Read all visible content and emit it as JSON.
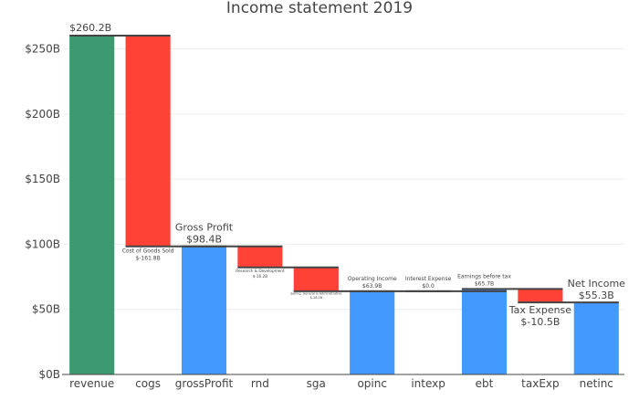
{
  "chart_data": {
    "type": "waterfall",
    "title": "Income statement 2019",
    "xlabel": "",
    "ylabel": "",
    "ylim": [
      0,
      270
    ],
    "yticks": [
      0,
      50,
      100,
      150,
      200,
      250
    ],
    "ytick_labels": [
      "$0B",
      "$50B",
      "$100B",
      "$150B",
      "$200B",
      "$250B"
    ],
    "categories": [
      "revenue",
      "cogs",
      "grossProfit",
      "rnd",
      "sga",
      "opinc",
      "intexp",
      "ebt",
      "taxExp",
      "netinc"
    ],
    "bars": [
      {
        "category": "revenue",
        "kind": "total",
        "base": 0,
        "top": 260.2,
        "label": "",
        "value_label": "$260.2B",
        "label_size": "large"
      },
      {
        "category": "cogs",
        "kind": "decrease",
        "base": 98.4,
        "top": 260.2,
        "label": "Cost of Goods Sold",
        "value_label": "$-161.8B",
        "label_size": "small"
      },
      {
        "category": "grossProfit",
        "kind": "total",
        "base": 0,
        "top": 98.4,
        "label": "Gross Profit",
        "value_label": "$98.4B",
        "label_size": "large"
      },
      {
        "category": "rnd",
        "kind": "decrease",
        "base": 82.2,
        "top": 98.4,
        "label": "Research & Development",
        "value_label": "$-16.2B",
        "label_size": "tiny"
      },
      {
        "category": "sga",
        "kind": "decrease",
        "base": 63.9,
        "top": 82.2,
        "label": "Selling, General & Administrative",
        "value_label": "$-18.2B",
        "label_size": "micro"
      },
      {
        "category": "opinc",
        "kind": "total",
        "base": 0,
        "top": 63.9,
        "label": "Operating Income",
        "value_label": "$63.9B",
        "label_size": "small"
      },
      {
        "category": "intexp",
        "kind": "decrease",
        "base": 63.9,
        "top": 63.9,
        "label": "Interest Expense",
        "value_label": "$0.0",
        "label_size": "small"
      },
      {
        "category": "ebt",
        "kind": "total",
        "base": 0,
        "top": 65.7,
        "label": "Earnings before tax",
        "value_label": "$65.7B",
        "label_size": "small"
      },
      {
        "category": "taxExp",
        "kind": "decrease",
        "base": 55.3,
        "top": 65.7,
        "label": "Tax Expense",
        "value_label": "$-10.5B",
        "label_size": "large"
      },
      {
        "category": "netinc",
        "kind": "total",
        "base": 0,
        "top": 55.3,
        "label": "Net Income",
        "value_label": "$55.3B",
        "label_size": "large"
      }
    ],
    "colors": {
      "first_total": "#3d9970",
      "total": "#4499ff",
      "decrease": "#ff4136",
      "connector": "#444444"
    },
    "grid": true,
    "legend": "none"
  }
}
